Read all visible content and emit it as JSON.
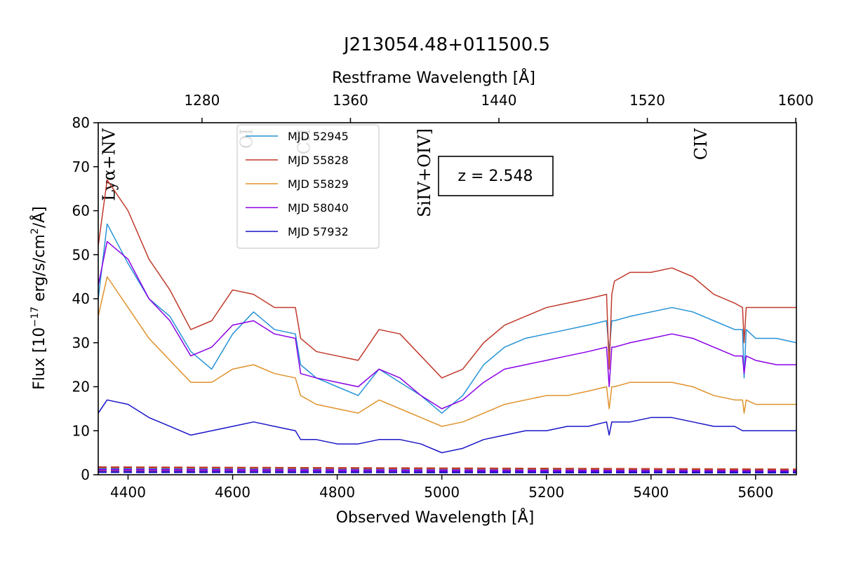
{
  "chart_data": {
    "type": "line",
    "title": "J213054.48+011500.5",
    "xlabel": "Observed Wavelength [Å]",
    "ylabel_prefix": "Flux [10",
    "ylabel_exp": "−17",
    "ylabel_mid": " erg/s/cm",
    "ylabel_exp2": "2",
    "ylabel_suffix": "/Å]",
    "top_xlabel": "Restframe Wavelength [Å]",
    "xlim": [
      4343,
      5678
    ],
    "ylim": [
      0,
      80
    ],
    "x_ticks": [
      4400,
      4600,
      4800,
      5000,
      5200,
      5400,
      5600
    ],
    "y_ticks": [
      0,
      10,
      20,
      30,
      40,
      50,
      60,
      70,
      80
    ],
    "top_ticks": [
      1280,
      1360,
      1440,
      1520,
      1600
    ],
    "redshift": 2.548,
    "redshift_label": "z = 2.548",
    "line_labels": [
      {
        "label": "Lyα+NV",
        "rest": 1230
      },
      {
        "label": "OI",
        "rest": 1304
      },
      {
        "label": "CII",
        "rest": 1335
      },
      {
        "label": "SiIV+OIV]",
        "rest": 1400
      },
      {
        "label": "CIV",
        "rest": 1549
      }
    ],
    "legend_position": "upper-left",
    "series": [
      {
        "name": "MJD 52945",
        "color": "#2592d6",
        "x": [
          4343,
          4360,
          4400,
          4440,
          4480,
          4520,
          4560,
          4600,
          4640,
          4680,
          4720,
          4730,
          4760,
          4800,
          4840,
          4880,
          4920,
          4960,
          5000,
          5040,
          5080,
          5120,
          5160,
          5200,
          5240,
          5280,
          5315,
          5320,
          5325,
          5330,
          5360,
          5400,
          5440,
          5480,
          5520,
          5560,
          5575,
          5578,
          5582,
          5600,
          5640,
          5678
        ],
        "y": [
          40,
          57,
          48,
          40,
          36,
          28,
          24,
          32,
          37,
          33,
          32,
          25,
          22,
          20,
          18,
          24,
          21,
          18,
          14,
          18,
          25,
          29,
          31,
          32,
          33,
          34,
          35,
          28,
          35,
          35,
          36,
          37,
          38,
          37,
          35,
          33,
          33,
          22,
          33,
          31,
          31,
          30
        ]
      },
      {
        "name": "MJD 55828",
        "color": "#c0392b",
        "x": [
          4343,
          4360,
          4400,
          4440,
          4480,
          4520,
          4560,
          4600,
          4640,
          4680,
          4720,
          4730,
          4760,
          4800,
          4840,
          4880,
          4920,
          4960,
          5000,
          5040,
          5080,
          5120,
          5160,
          5200,
          5240,
          5280,
          5315,
          5320,
          5325,
          5330,
          5360,
          5400,
          5440,
          5480,
          5520,
          5560,
          5575,
          5578,
          5582,
          5600,
          5640,
          5678
        ],
        "y": [
          52,
          67,
          60,
          49,
          42,
          33,
          35,
          42,
          41,
          38,
          38,
          31,
          28,
          27,
          26,
          33,
          32,
          27,
          22,
          24,
          30,
          34,
          36,
          38,
          39,
          40,
          41,
          24,
          41,
          44,
          46,
          46,
          47,
          45,
          41,
          39,
          38,
          30,
          38,
          38,
          38,
          38
        ]
      },
      {
        "name": "MJD 55829",
        "color": "#e0922b",
        "x": [
          4343,
          4360,
          4400,
          4440,
          4480,
          4520,
          4560,
          4600,
          4640,
          4680,
          4720,
          4730,
          4760,
          4800,
          4840,
          4880,
          4920,
          4960,
          5000,
          5040,
          5080,
          5120,
          5160,
          5200,
          5240,
          5280,
          5315,
          5320,
          5325,
          5330,
          5360,
          5400,
          5440,
          5480,
          5520,
          5560,
          5575,
          5578,
          5582,
          5600,
          5640,
          5678
        ],
        "y": [
          36,
          45,
          38,
          31,
          26,
          21,
          21,
          24,
          25,
          23,
          22,
          18,
          16,
          15,
          14,
          17,
          15,
          13,
          11,
          12,
          14,
          16,
          17,
          18,
          18,
          19,
          20,
          15,
          20,
          20,
          21,
          21,
          21,
          20,
          18,
          17,
          17,
          14,
          17,
          16,
          16,
          16
        ]
      },
      {
        "name": "MJD 58040",
        "color": "#8a00e6",
        "x": [
          4343,
          4360,
          4400,
          4440,
          4480,
          4520,
          4560,
          4600,
          4640,
          4680,
          4720,
          4730,
          4760,
          4800,
          4840,
          4880,
          4920,
          4960,
          5000,
          5040,
          5080,
          5120,
          5160,
          5200,
          5240,
          5280,
          5315,
          5320,
          5325,
          5330,
          5360,
          5400,
          5440,
          5480,
          5520,
          5560,
          5575,
          5578,
          5582,
          5600,
          5640,
          5678
        ],
        "y": [
          43,
          53,
          49,
          40,
          35,
          27,
          29,
          34,
          35,
          32,
          31,
          23,
          22,
          21,
          20,
          24,
          22,
          18,
          15,
          17,
          21,
          24,
          25,
          26,
          27,
          28,
          29,
          20,
          29,
          29,
          30,
          31,
          32,
          31,
          29,
          27,
          27,
          23,
          27,
          26,
          25,
          25
        ]
      },
      {
        "name": "MJD 57932",
        "color": "#1a14c8",
        "x": [
          4343,
          4360,
          4400,
          4440,
          4480,
          4520,
          4560,
          4600,
          4640,
          4680,
          4720,
          4730,
          4760,
          4800,
          4840,
          4880,
          4920,
          4960,
          5000,
          5040,
          5080,
          5120,
          5160,
          5200,
          5240,
          5280,
          5315,
          5320,
          5325,
          5330,
          5360,
          5400,
          5440,
          5480,
          5520,
          5560,
          5575,
          5578,
          5582,
          5600,
          5640,
          5678
        ],
        "y": [
          14,
          17,
          16,
          13,
          11,
          9,
          10,
          11,
          12,
          11,
          10,
          8,
          8,
          7,
          7,
          8,
          8,
          7,
          5,
          6,
          8,
          9,
          10,
          10,
          11,
          11,
          12,
          9,
          12,
          12,
          12,
          13,
          13,
          12,
          11,
          11,
          10,
          10,
          10,
          10,
          10,
          10
        ]
      }
    ],
    "error_series": [
      {
        "color": "#2592d6",
        "x": [
          4343,
          5678
        ],
        "y": [
          1.4,
          1.0
        ]
      },
      {
        "color": "#c0392b",
        "x": [
          4343,
          5678
        ],
        "y": [
          1.7,
          1.2
        ]
      },
      {
        "color": "#e0922b",
        "x": [
          4343,
          5678
        ],
        "y": [
          0.9,
          0.7
        ]
      },
      {
        "color": "#8a00e6",
        "x": [
          4343,
          5678
        ],
        "y": [
          1.1,
          0.8
        ]
      },
      {
        "color": "#1a14c8",
        "x": [
          4343,
          5678
        ],
        "y": [
          0.6,
          0.5
        ]
      }
    ]
  }
}
